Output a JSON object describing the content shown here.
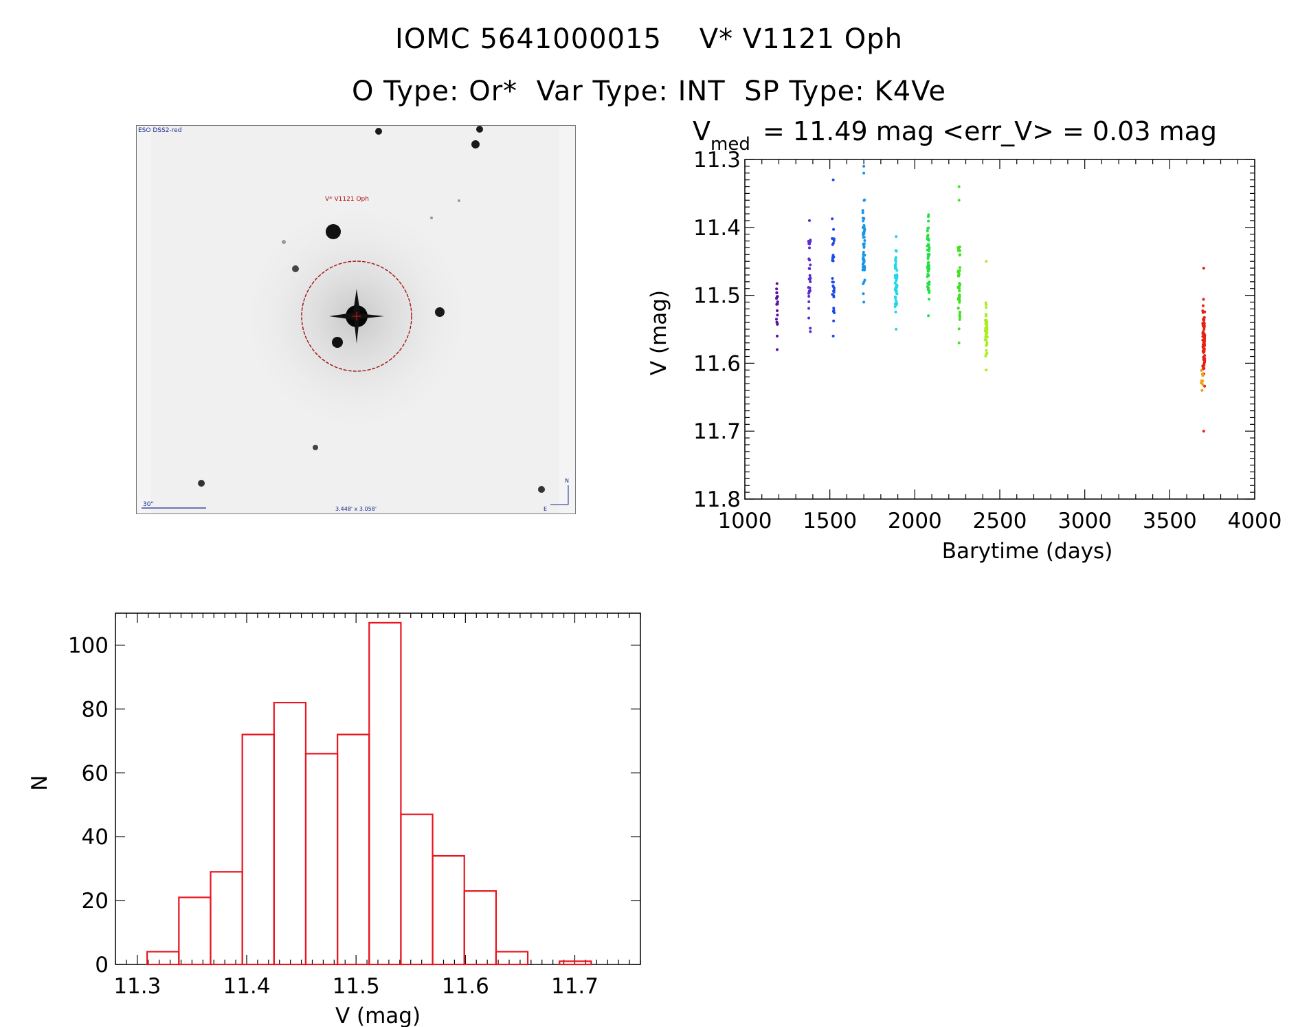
{
  "header": {
    "title_line1": "IOMC 5641000015    V* V1121 Oph",
    "title_line2": "O Type: Or*  Var Type: INT  SP Type: K4Ve"
  },
  "finder_chart": {
    "survey_label": "ESO DSS2-red",
    "target_label": "V* V1121 Oph",
    "scale_label": "30\"",
    "fov_label": "3.448' x 3.058'",
    "north_label": "N",
    "east_label": "E"
  },
  "chart_data": [
    {
      "type": "scatter",
      "title_main": "V",
      "title_sub": "med",
      "title_rest": "= 11.49 mag <err_V> = 0.03 mag",
      "xlabel": "Barytime (days)",
      "ylabel": "V (mag)",
      "xlim": [
        1000,
        4000
      ],
      "ylim": [
        11.3,
        11.8
      ],
      "y_inverted": true,
      "xticks": [
        1000,
        1500,
        2000,
        2500,
        3000,
        3500,
        4000
      ],
      "yticks": [
        11.3,
        11.4,
        11.5,
        11.6,
        11.7,
        11.8
      ],
      "groups": [
        {
          "x": 1190,
          "color": "#5a0fa0",
          "ymin": 11.43,
          "ymax": 11.58,
          "n": 18,
          "outliers": [
            11.56,
            11.58
          ]
        },
        {
          "x": 1380,
          "color": "#5a2ad0",
          "ymin": 11.38,
          "ymax": 11.57,
          "n": 30,
          "outliers": [
            11.39,
            11.43
          ]
        },
        {
          "x": 1520,
          "color": "#1e4be6",
          "ymin": 11.37,
          "ymax": 11.56,
          "n": 30,
          "outliers": [
            11.33,
            11.56
          ]
        },
        {
          "x": 1700,
          "color": "#1896e6",
          "ymin": 11.35,
          "ymax": 11.51,
          "n": 55,
          "outliers": [
            11.31,
            11.32,
            11.51
          ]
        },
        {
          "x": 1890,
          "color": "#20d8e8",
          "ymin": 11.4,
          "ymax": 11.55,
          "n": 45,
          "outliers": [
            11.55
          ]
        },
        {
          "x": 2080,
          "color": "#22e040",
          "ymin": 11.37,
          "ymax": 11.53,
          "n": 55,
          "outliers": [
            11.53
          ]
        },
        {
          "x": 2260,
          "color": "#44e022",
          "ymin": 11.4,
          "ymax": 11.57,
          "n": 45,
          "outliers": [
            11.34,
            11.36,
            11.57
          ]
        },
        {
          "x": 2420,
          "color": "#a8ee1a",
          "ymin": 11.49,
          "ymax": 11.61,
          "n": 50,
          "outliers": [
            11.45,
            11.61
          ]
        },
        {
          "x": 3700,
          "color": "#e82010",
          "ymin": 11.49,
          "ymax": 11.65,
          "n": 80,
          "outliers": [
            11.46,
            11.7
          ]
        },
        {
          "x": 3690,
          "color": "#f0a010",
          "ymin": 11.6,
          "ymax": 11.64,
          "n": 8,
          "outliers": [
            11.64
          ]
        }
      ]
    },
    {
      "type": "bar",
      "subtype": "histogram",
      "xlabel": "V (mag)",
      "ylabel": "N",
      "xlim": [
        11.28,
        11.76
      ],
      "ylim": [
        0,
        110
      ],
      "xticks": [
        11.3,
        11.4,
        11.5,
        11.6,
        11.7
      ],
      "yticks": [
        0,
        20,
        40,
        60,
        80,
        100
      ],
      "bin_edges": [
        11.309,
        11.338,
        11.367,
        11.396,
        11.425,
        11.454,
        11.483,
        11.512,
        11.541,
        11.57,
        11.599,
        11.628,
        11.657,
        11.686,
        11.715
      ],
      "values": [
        4,
        21,
        29,
        72,
        82,
        66,
        72,
        107,
        47,
        34,
        23,
        4,
        0,
        1
      ],
      "color": "#e8141e"
    }
  ]
}
